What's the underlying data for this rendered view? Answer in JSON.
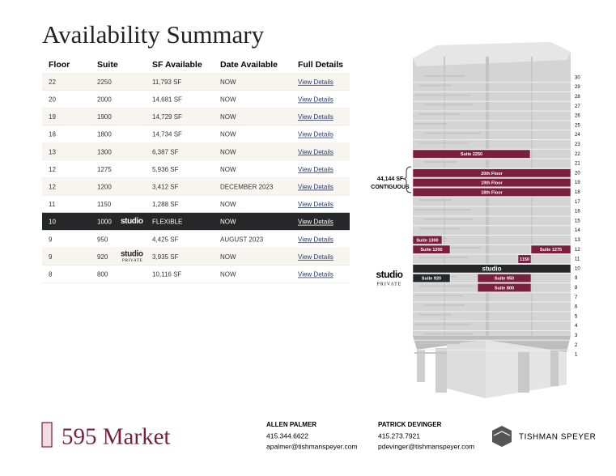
{
  "title": "Availability Summary",
  "table": {
    "headers": [
      "Floor",
      "Suite",
      "SF Available",
      "Date Available",
      "Full Details"
    ],
    "rows": [
      {
        "floor": "22",
        "suite": "2250",
        "sf": "11,793 SF",
        "date": "NOW",
        "link": "View Details"
      },
      {
        "floor": "20",
        "suite": "2000",
        "sf": "14,681 SF",
        "date": "NOW",
        "link": "View Details"
      },
      {
        "floor": "19",
        "suite": "1900",
        "sf": "14,729 SF",
        "date": "NOW",
        "link": "View Details"
      },
      {
        "floor": "18",
        "suite": "1800",
        "sf": "14,734 SF",
        "date": "NOW",
        "link": "View Details"
      },
      {
        "floor": "13",
        "suite": "1300",
        "sf": "6,387 SF",
        "date": "NOW",
        "link": "View Details"
      },
      {
        "floor": "12",
        "suite": "1275",
        "sf": "5,936 SF",
        "date": "NOW",
        "link": "View Details"
      },
      {
        "floor": "12",
        "suite": "1200",
        "sf": "3,412 SF",
        "date": "DECEMBER 2023",
        "link": "View Details"
      },
      {
        "floor": "11",
        "suite": "1150",
        "sf": "1,288 SF",
        "date": "NOW",
        "link": "View Details"
      },
      {
        "floor": "10",
        "suite": "1000",
        "badge": "studio",
        "sf": "FLEXIBLE",
        "date": "NOW",
        "link": "View Details"
      },
      {
        "floor": "9",
        "suite": "950",
        "sf": "4,425 SF",
        "date": "AUGUST 2023",
        "link": "View Details"
      },
      {
        "floor": "9",
        "suite": "920",
        "badge": "studio",
        "badge_sub": "PRIVATE",
        "sf": "3,935 SF",
        "date": "NOW",
        "link": "View Details"
      },
      {
        "floor": "8",
        "suite": "800",
        "sf": "10,116 SF",
        "date": "NOW",
        "link": "View Details"
      }
    ]
  },
  "building": {
    "floors": [
      "1",
      "2",
      "3",
      "4",
      "5",
      "6",
      "7",
      "8",
      "9",
      "10",
      "11",
      "12",
      "13",
      "14",
      "15",
      "16",
      "17",
      "18",
      "19",
      "20",
      "21",
      "22",
      "23",
      "24",
      "25",
      "26",
      "27",
      "28",
      "29",
      "30"
    ],
    "callout": [
      "44,144 SF",
      "CONTIGUOUS"
    ],
    "suites": [
      "Suite 2250",
      "20th Floor",
      "19th Floor",
      "18th Floor",
      "Suite 1300",
      "Suite 1200",
      "Suite 1275",
      "1150",
      "studio",
      "Suite 920",
      "Suite 950",
      "Suite 800"
    ],
    "badge": [
      "studio",
      "PRIVATE"
    ]
  },
  "footer": {
    "logo": "595 Market",
    "contacts": [
      {
        "name": "ALLEN PALMER",
        "phone": "415.344.6622",
        "email": "apalmer@tishmanspeyer.com"
      },
      {
        "name": "PATRICK DEVINGER",
        "phone": "415.273.7921",
        "email": "pdevinger@tishmanspeyer.com"
      }
    ],
    "company": "TISHMAN SPEYER"
  }
}
